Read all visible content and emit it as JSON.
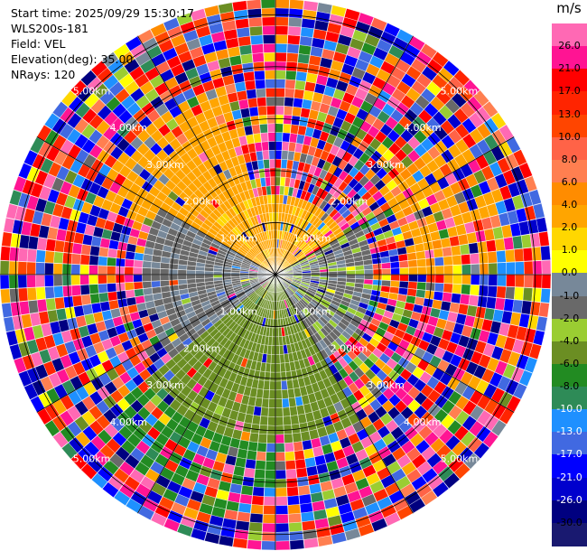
{
  "header": {
    "start_time": "Start time: 2025/09/29 15:30:17",
    "instrument": "WLS200s-181",
    "field": "Field: VEL",
    "elevation": "Elevation(deg): 35.00",
    "nrays": "NRays: 120"
  },
  "colorbar": {
    "unit": "m/s",
    "ticks": [
      "26.0",
      "21.0",
      "17.0",
      "13.0",
      "10.0",
      "8.0",
      "6.0",
      "4.0",
      "2.0",
      "1.0",
      "0.0",
      "-1.0",
      "-2.0",
      "-4.0",
      "-6.0",
      "-8.0",
      "-10.0",
      "-13.0",
      "-17.0",
      "-21.0",
      "-26.0",
      "-30.0"
    ],
    "colors": [
      "#ff69b4",
      "#ff1493",
      "#ff0000",
      "#ff2400",
      "#ff4500",
      "#ff6347",
      "#ff7f50",
      "#ff8c00",
      "#ffa500",
      "#ffd700",
      "#ffff00",
      "#778899",
      "#696969",
      "#9acd32",
      "#6b8e23",
      "#228b22",
      "#2e8b57",
      "#1e90ff",
      "#4169e1",
      "#0000ff",
      "#0000cd",
      "#000080",
      "#191970"
    ],
    "text_colors": [
      "#000000",
      "#000000",
      "#000000",
      "#000000",
      "#000000",
      "#000000",
      "#000000",
      "#000000",
      "#000000",
      "#000000",
      "#000000",
      "#000000",
      "#000000",
      "#000000",
      "#000000",
      "#000000",
      "#ffffff",
      "#ffffff",
      "#ffffff",
      "#ffffff",
      "#ffffff",
      "#000000"
    ]
  },
  "chart_data": {
    "type": "heatmap",
    "projection": "polar-ppi",
    "field": "VEL",
    "units": "m/s",
    "n_rays": 120,
    "max_range_km": 5.3,
    "range_gates": 31,
    "range_rings_km": [
      1,
      2,
      3,
      4,
      5
    ],
    "ring_labels": [
      "1.00km",
      "2.00km",
      "3.00km",
      "4.00km",
      "5.00km"
    ],
    "azimuth_spokes_deg": [
      0,
      30,
      60,
      90,
      120,
      150,
      180,
      210,
      240,
      270,
      300,
      330
    ],
    "grid": true,
    "color_levels": [
      -30,
      -26,
      -21,
      -17,
      -13,
      -10,
      -8,
      -6,
      -4,
      -2,
      -1,
      0,
      1,
      2,
      4,
      6,
      8,
      10,
      13,
      17,
      21,
      26
    ],
    "sectors": [
      {
        "azimuth_deg": [
          300,
          60
        ],
        "range_km": [
          0,
          1.6
        ],
        "velocity": 2.5
      },
      {
        "azimuth_deg": [
          60,
          150
        ],
        "range_km": [
          0,
          1.8
        ],
        "velocity": -1.5
      },
      {
        "azimuth_deg": [
          150,
          230
        ],
        "range_km": [
          0,
          3.2
        ],
        "velocity": -5.0
      },
      {
        "azimuth_deg": [
          230,
          300
        ],
        "range_km": [
          0,
          2.5
        ],
        "velocity": -1.2
      },
      {
        "azimuth_deg": [
          290,
          345
        ],
        "range_km": [
          1.6,
          3.8
        ],
        "velocity": 3.0
      },
      {
        "azimuth_deg": [
          50,
          90
        ],
        "range_km": [
          2.5,
          4.7
        ],
        "velocity": 3.5
      },
      {
        "azimuth_deg": [
          20,
          40
        ],
        "range_km": [
          4.4,
          5.3
        ],
        "velocity": 9.0
      },
      {
        "azimuth_deg": [
          180,
          230
        ],
        "range_km": [
          3.2,
          4.8
        ],
        "velocity": -7.0
      }
    ]
  }
}
